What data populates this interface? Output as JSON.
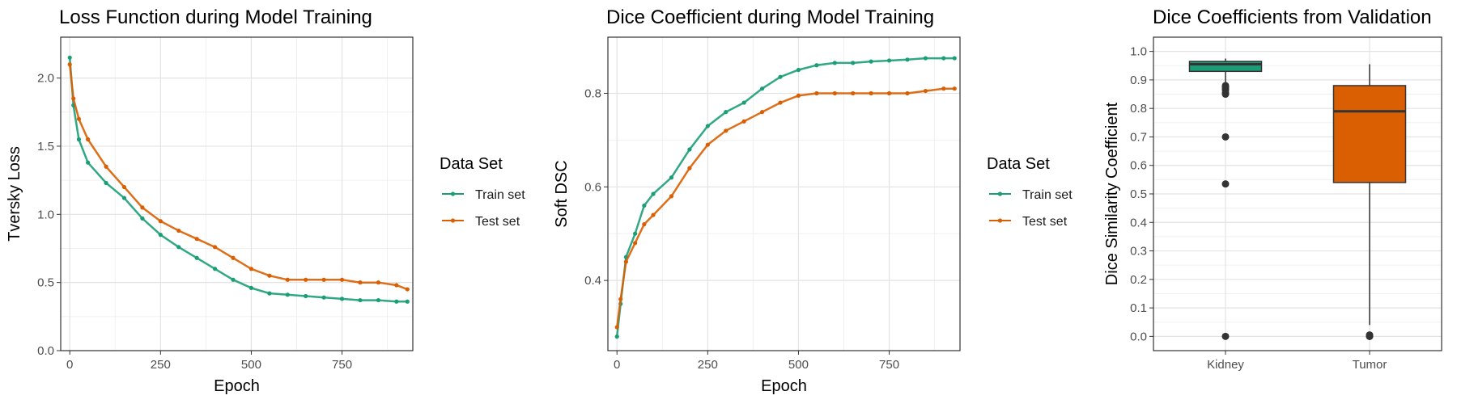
{
  "chart_data": [
    {
      "type": "line",
      "title": "Loss Function during Model Training",
      "xlabel": "Epoch",
      "ylabel": "Tversky Loss",
      "xlim": [
        -25,
        945
      ],
      "ylim": [
        0,
        2.3
      ],
      "xticks": [
        0,
        250,
        500,
        750
      ],
      "yticks": [
        0.0,
        0.5,
        1.0,
        1.5,
        2.0
      ],
      "ytick_labels": [
        "0.0",
        "0.5",
        "1.0",
        "1.5",
        "2.0"
      ],
      "grid": true,
      "legend_title": "Data Set",
      "legend_position": "right",
      "series": [
        {
          "name": "Train set",
          "color": "#1b9e77",
          "x": [
            0,
            10,
            25,
            50,
            100,
            150,
            200,
            250,
            300,
            350,
            400,
            450,
            500,
            550,
            600,
            650,
            700,
            750,
            800,
            850,
            900,
            930
          ],
          "y": [
            2.15,
            1.8,
            1.55,
            1.38,
            1.23,
            1.12,
            0.97,
            0.85,
            0.76,
            0.68,
            0.6,
            0.52,
            0.46,
            0.42,
            0.41,
            0.4,
            0.39,
            0.38,
            0.37,
            0.37,
            0.36,
            0.36
          ]
        },
        {
          "name": "Test set",
          "color": "#d95f02",
          "x": [
            0,
            10,
            25,
            50,
            100,
            150,
            200,
            250,
            300,
            350,
            400,
            450,
            500,
            550,
            600,
            650,
            700,
            750,
            800,
            850,
            900,
            930
          ],
          "y": [
            2.1,
            1.85,
            1.7,
            1.55,
            1.35,
            1.2,
            1.05,
            0.95,
            0.88,
            0.82,
            0.76,
            0.68,
            0.6,
            0.55,
            0.52,
            0.52,
            0.52,
            0.52,
            0.5,
            0.5,
            0.48,
            0.45
          ]
        }
      ]
    },
    {
      "type": "line",
      "title": "Dice Coefficient during Model Training",
      "xlabel": "Epoch",
      "ylabel": "Soft DSC",
      "xlim": [
        -25,
        945
      ],
      "ylim": [
        0.25,
        0.92
      ],
      "xticks": [
        0,
        250,
        500,
        750
      ],
      "yticks": [
        0.4,
        0.6,
        0.8
      ],
      "ytick_labels": [
        "0.4",
        "0.6",
        "0.8"
      ],
      "grid": true,
      "legend_title": "Data Set",
      "legend_position": "right",
      "series": [
        {
          "name": "Train set",
          "color": "#1b9e77",
          "x": [
            0,
            10,
            25,
            50,
            75,
            100,
            150,
            200,
            250,
            300,
            350,
            400,
            450,
            500,
            550,
            600,
            650,
            700,
            750,
            800,
            850,
            900,
            930
          ],
          "y": [
            0.28,
            0.35,
            0.45,
            0.5,
            0.56,
            0.585,
            0.62,
            0.68,
            0.73,
            0.76,
            0.78,
            0.81,
            0.835,
            0.85,
            0.86,
            0.865,
            0.865,
            0.868,
            0.87,
            0.872,
            0.875,
            0.875,
            0.875
          ]
        },
        {
          "name": "Test set",
          "color": "#d95f02",
          "x": [
            0,
            10,
            25,
            50,
            75,
            100,
            150,
            200,
            250,
            300,
            350,
            400,
            450,
            500,
            550,
            600,
            650,
            700,
            750,
            800,
            850,
            900,
            930
          ],
          "y": [
            0.3,
            0.36,
            0.44,
            0.48,
            0.52,
            0.54,
            0.58,
            0.64,
            0.69,
            0.72,
            0.74,
            0.76,
            0.78,
            0.795,
            0.8,
            0.8,
            0.8,
            0.8,
            0.8,
            0.8,
            0.805,
            0.81,
            0.81
          ]
        }
      ]
    },
    {
      "type": "box",
      "title": "Dice Coefficients from Validation",
      "xlabel": "",
      "ylabel": "Dice Similarity Coefficient",
      "ylim": [
        -0.05,
        1.05
      ],
      "yticks": [
        0.0,
        0.1,
        0.2,
        0.3,
        0.4,
        0.5,
        0.6,
        0.7,
        0.8,
        0.9,
        1.0
      ],
      "ytick_labels": [
        "0.0",
        "0.1",
        "0.2",
        "0.3",
        "0.4",
        "0.5",
        "0.6",
        "0.7",
        "0.8",
        "0.9",
        "1.0"
      ],
      "grid": true,
      "categories": [
        "Kidney",
        "Tumor"
      ],
      "boxes": [
        {
          "category": "Kidney",
          "color": "#1b9e77",
          "whisker_low": 0.89,
          "q1": 0.93,
          "median": 0.955,
          "q3": 0.965,
          "whisker_high": 0.975,
          "outliers": [
            0.88,
            0.875,
            0.87,
            0.865,
            0.855,
            0.85,
            0.7,
            0.535,
            0.0
          ]
        },
        {
          "category": "Tumor",
          "color": "#d95f02",
          "whisker_low": 0.04,
          "q1": 0.54,
          "median": 0.79,
          "q3": 0.88,
          "whisker_high": 0.955,
          "outliers": [
            0.005,
            0.0,
            0.0
          ]
        }
      ]
    }
  ]
}
